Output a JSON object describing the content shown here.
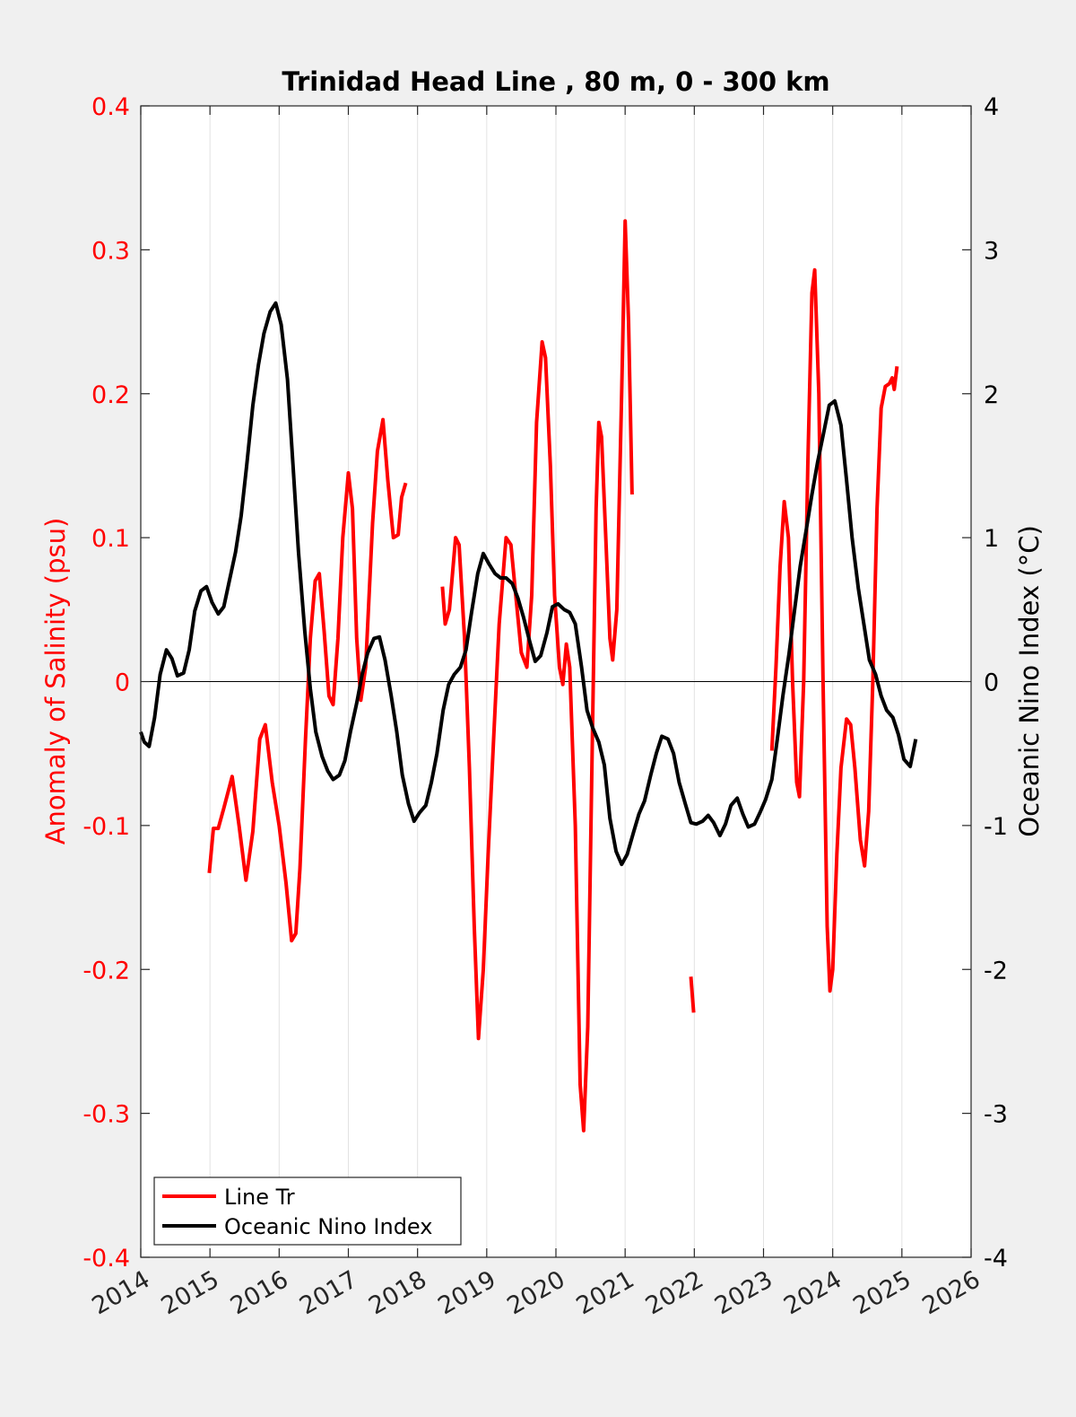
{
  "chart_data": {
    "type": "line",
    "title": "Trinidad Head Line , 80 m, 0 - 300 km",
    "xlabel": "",
    "ylabel_left": "Anomaly of Salinity (psu)",
    "ylabel_right": "Oceanic Nino Index (°C)",
    "xlim": [
      2014,
      2026
    ],
    "ylim_left": [
      -0.4,
      0.4
    ],
    "ylim_right": [
      -4,
      4
    ],
    "x_ticks": [
      "2014",
      "2015",
      "2016",
      "2017",
      "2018",
      "2019",
      "2020",
      "2021",
      "2022",
      "2023",
      "2024",
      "2025",
      "2026"
    ],
    "y_left_ticks": [
      "-0.4",
      "-0.3",
      "-0.2",
      "-0.1",
      "0",
      "0.1",
      "0.2",
      "0.3",
      "0.4"
    ],
    "y_right_ticks": [
      "-4",
      "-3",
      "-2",
      "-1",
      "0",
      "1",
      "2",
      "3",
      "4"
    ],
    "grid": "vertical",
    "legend_position": "bottom-left",
    "colors": {
      "line_tr": "#ff0000",
      "oni": "#000000",
      "left_axis": "#ff0000",
      "right_axis": "#000000"
    },
    "series": [
      {
        "name": "Line Tr",
        "axis": "left",
        "segments": [
          [
            [
              2014.99,
              -0.133
            ],
            [
              2015.05,
              -0.102
            ],
            [
              2015.12,
              -0.102
            ],
            [
              2015.2,
              -0.088
            ],
            [
              2015.32,
              -0.066
            ],
            [
              2015.42,
              -0.1
            ],
            [
              2015.52,
              -0.138
            ],
            [
              2015.62,
              -0.104
            ],
            [
              2015.72,
              -0.04
            ],
            [
              2015.8,
              -0.03
            ],
            [
              2015.9,
              -0.07
            ],
            [
              2016.0,
              -0.1
            ],
            [
              2016.1,
              -0.14
            ],
            [
              2016.18,
              -0.18
            ],
            [
              2016.24,
              -0.175
            ],
            [
              2016.3,
              -0.13
            ],
            [
              2016.38,
              -0.04
            ],
            [
              2016.45,
              0.03
            ],
            [
              2016.52,
              0.07
            ],
            [
              2016.58,
              0.075
            ],
            [
              2016.65,
              0.035
            ],
            [
              2016.72,
              -0.01
            ],
            [
              2016.78,
              -0.016
            ],
            [
              2016.85,
              0.03
            ],
            [
              2016.92,
              0.1
            ],
            [
              2017.0,
              0.145
            ],
            [
              2017.06,
              0.12
            ],
            [
              2017.12,
              0.03
            ],
            [
              2017.18,
              -0.013
            ],
            [
              2017.25,
              0.01
            ],
            [
              2017.35,
              0.11
            ],
            [
              2017.42,
              0.16
            ],
            [
              2017.5,
              0.182
            ],
            [
              2017.57,
              0.14
            ],
            [
              2017.65,
              0.1
            ],
            [
              2017.72,
              0.102
            ],
            [
              2017.77,
              0.128
            ],
            [
              2017.83,
              0.138
            ]
          ],
          [
            [
              2018.36,
              0.066
            ],
            [
              2018.4,
              0.04
            ],
            [
              2018.46,
              0.05
            ],
            [
              2018.55,
              0.1
            ],
            [
              2018.6,
              0.095
            ],
            [
              2018.68,
              0.03
            ],
            [
              2018.75,
              -0.06
            ],
            [
              2018.82,
              -0.17
            ],
            [
              2018.88,
              -0.248
            ],
            [
              2018.95,
              -0.2
            ],
            [
              2019.02,
              -0.12
            ],
            [
              2019.1,
              -0.04
            ],
            [
              2019.18,
              0.04
            ],
            [
              2019.28,
              0.1
            ],
            [
              2019.35,
              0.095
            ],
            [
              2019.42,
              0.06
            ],
            [
              2019.5,
              0.02
            ],
            [
              2019.58,
              0.01
            ],
            [
              2019.65,
              0.06
            ],
            [
              2019.72,
              0.18
            ],
            [
              2019.8,
              0.236
            ],
            [
              2019.85,
              0.225
            ],
            [
              2019.92,
              0.15
            ],
            [
              2019.98,
              0.06
            ],
            [
              2020.05,
              0.01
            ],
            [
              2020.1,
              -0.002
            ],
            [
              2020.15,
              0.026
            ],
            [
              2020.2,
              0.01
            ],
            [
              2020.28,
              -0.1
            ],
            [
              2020.35,
              -0.28
            ],
            [
              2020.4,
              -0.312
            ],
            [
              2020.46,
              -0.24
            ],
            [
              2020.52,
              -0.06
            ],
            [
              2020.58,
              0.12
            ],
            [
              2020.62,
              0.18
            ],
            [
              2020.66,
              0.17
            ],
            [
              2020.72,
              0.1
            ],
            [
              2020.78,
              0.03
            ],
            [
              2020.82,
              0.015
            ],
            [
              2020.88,
              0.05
            ],
            [
              2020.95,
              0.2
            ],
            [
              2021.0,
              0.32
            ],
            [
              2021.05,
              0.25
            ],
            [
              2021.1,
              0.13
            ]
          ],
          [
            [
              2021.95,
              -0.205
            ],
            [
              2021.99,
              -0.23
            ]
          ],
          [
            [
              2023.12,
              -0.048
            ],
            [
              2023.18,
              0.01
            ],
            [
              2023.24,
              0.08
            ],
            [
              2023.3,
              0.125
            ],
            [
              2023.36,
              0.1
            ],
            [
              2023.42,
              0.0
            ],
            [
              2023.48,
              -0.07
            ],
            [
              2023.52,
              -0.08
            ],
            [
              2023.58,
              0.0
            ],
            [
              2023.64,
              0.15
            ],
            [
              2023.7,
              0.27
            ],
            [
              2023.74,
              0.286
            ],
            [
              2023.8,
              0.2
            ],
            [
              2023.86,
              0.0
            ],
            [
              2023.92,
              -0.17
            ],
            [
              2023.96,
              -0.215
            ],
            [
              2024.0,
              -0.2
            ],
            [
              2024.06,
              -0.12
            ],
            [
              2024.12,
              -0.06
            ],
            [
              2024.2,
              -0.026
            ],
            [
              2024.26,
              -0.03
            ],
            [
              2024.32,
              -0.06
            ],
            [
              2024.4,
              -0.11
            ],
            [
              2024.46,
              -0.128
            ],
            [
              2024.52,
              -0.09
            ],
            [
              2024.58,
              0.0
            ],
            [
              2024.64,
              0.12
            ],
            [
              2024.7,
              0.19
            ],
            [
              2024.76,
              0.205
            ],
            [
              2024.82,
              0.207
            ],
            [
              2024.86,
              0.211
            ],
            [
              2024.89,
              0.203
            ],
            [
              2024.93,
              0.219
            ]
          ]
        ]
      },
      {
        "name": "Oceanic Nino Index",
        "axis": "right",
        "segments": [
          [
            [
              2014.0,
              -0.35
            ],
            [
              2014.05,
              -0.42
            ],
            [
              2014.12,
              -0.45
            ],
            [
              2014.2,
              -0.25
            ],
            [
              2014.28,
              0.05
            ],
            [
              2014.37,
              0.22
            ],
            [
              2014.45,
              0.16
            ],
            [
              2014.53,
              0.04
            ],
            [
              2014.62,
              0.06
            ],
            [
              2014.7,
              0.22
            ],
            [
              2014.78,
              0.49
            ],
            [
              2014.87,
              0.63
            ],
            [
              2014.95,
              0.66
            ],
            [
              2015.03,
              0.55
            ],
            [
              2015.12,
              0.47
            ],
            [
              2015.2,
              0.52
            ],
            [
              2015.28,
              0.7
            ],
            [
              2015.37,
              0.9
            ],
            [
              2015.45,
              1.15
            ],
            [
              2015.53,
              1.5
            ],
            [
              2015.62,
              1.92
            ],
            [
              2015.7,
              2.2
            ],
            [
              2015.78,
              2.42
            ],
            [
              2015.87,
              2.57
            ],
            [
              2015.95,
              2.63
            ],
            [
              2016.03,
              2.48
            ],
            [
              2016.12,
              2.1
            ],
            [
              2016.2,
              1.5
            ],
            [
              2016.28,
              0.9
            ],
            [
              2016.37,
              0.35
            ],
            [
              2016.45,
              -0.05
            ],
            [
              2016.53,
              -0.35
            ],
            [
              2016.62,
              -0.52
            ],
            [
              2016.7,
              -0.62
            ],
            [
              2016.78,
              -0.68
            ],
            [
              2016.87,
              -0.65
            ],
            [
              2016.95,
              -0.55
            ],
            [
              2017.03,
              -0.35
            ],
            [
              2017.12,
              -0.15
            ],
            [
              2017.2,
              0.05
            ],
            [
              2017.28,
              0.2
            ],
            [
              2017.37,
              0.3
            ],
            [
              2017.45,
              0.31
            ],
            [
              2017.53,
              0.15
            ],
            [
              2017.62,
              -0.1
            ],
            [
              2017.7,
              -0.35
            ],
            [
              2017.78,
              -0.65
            ],
            [
              2017.87,
              -0.85
            ],
            [
              2017.95,
              -0.97
            ],
            [
              2018.03,
              -0.91
            ],
            [
              2018.12,
              -0.86
            ],
            [
              2018.2,
              -0.7
            ],
            [
              2018.28,
              -0.5
            ],
            [
              2018.37,
              -0.2
            ],
            [
              2018.45,
              -0.02
            ],
            [
              2018.53,
              0.05
            ],
            [
              2018.62,
              0.1
            ],
            [
              2018.7,
              0.22
            ],
            [
              2018.78,
              0.48
            ],
            [
              2018.87,
              0.75
            ],
            [
              2018.95,
              0.89
            ],
            [
              2019.03,
              0.82
            ],
            [
              2019.12,
              0.75
            ],
            [
              2019.2,
              0.72
            ],
            [
              2019.28,
              0.72
            ],
            [
              2019.37,
              0.68
            ],
            [
              2019.45,
              0.58
            ],
            [
              2019.53,
              0.45
            ],
            [
              2019.62,
              0.28
            ],
            [
              2019.7,
              0.14
            ],
            [
              2019.78,
              0.18
            ],
            [
              2019.87,
              0.34
            ],
            [
              2019.95,
              0.52
            ],
            [
              2020.03,
              0.54
            ],
            [
              2020.12,
              0.5
            ],
            [
              2020.2,
              0.48
            ],
            [
              2020.28,
              0.4
            ],
            [
              2020.37,
              0.1
            ],
            [
              2020.45,
              -0.2
            ],
            [
              2020.53,
              -0.32
            ],
            [
              2020.62,
              -0.42
            ],
            [
              2020.7,
              -0.58
            ],
            [
              2020.78,
              -0.95
            ],
            [
              2020.87,
              -1.18
            ],
            [
              2020.95,
              -1.27
            ],
            [
              2021.03,
              -1.2
            ],
            [
              2021.12,
              -1.05
            ],
            [
              2021.2,
              -0.92
            ],
            [
              2021.28,
              -0.83
            ],
            [
              2021.37,
              -0.65
            ],
            [
              2021.45,
              -0.5
            ],
            [
              2021.53,
              -0.38
            ],
            [
              2021.62,
              -0.4
            ],
            [
              2021.7,
              -0.5
            ],
            [
              2021.78,
              -0.7
            ],
            [
              2021.87,
              -0.85
            ],
            [
              2021.95,
              -0.98
            ],
            [
              2022.03,
              -0.99
            ],
            [
              2022.12,
              -0.97
            ],
            [
              2022.2,
              -0.93
            ],
            [
              2022.28,
              -0.98
            ],
            [
              2022.37,
              -1.07
            ],
            [
              2022.45,
              -0.99
            ],
            [
              2022.53,
              -0.86
            ],
            [
              2022.62,
              -0.81
            ],
            [
              2022.7,
              -0.92
            ],
            [
              2022.78,
              -1.01
            ],
            [
              2022.87,
              -0.99
            ],
            [
              2022.95,
              -0.91
            ],
            [
              2023.03,
              -0.82
            ],
            [
              2023.12,
              -0.68
            ],
            [
              2023.2,
              -0.4
            ],
            [
              2023.28,
              -0.1
            ],
            [
              2023.37,
              0.2
            ],
            [
              2023.45,
              0.5
            ],
            [
              2023.53,
              0.8
            ],
            [
              2023.62,
              1.06
            ],
            [
              2023.7,
              1.3
            ],
            [
              2023.78,
              1.52
            ],
            [
              2023.87,
              1.73
            ],
            [
              2023.95,
              1.92
            ],
            [
              2024.03,
              1.95
            ],
            [
              2024.12,
              1.78
            ],
            [
              2024.2,
              1.4
            ],
            [
              2024.28,
              1.0
            ],
            [
              2024.37,
              0.65
            ],
            [
              2024.45,
              0.4
            ],
            [
              2024.53,
              0.15
            ],
            [
              2024.62,
              0.05
            ],
            [
              2024.7,
              -0.1
            ],
            [
              2024.78,
              -0.2
            ],
            [
              2024.87,
              -0.25
            ],
            [
              2024.95,
              -0.37
            ],
            [
              2025.03,
              -0.54
            ],
            [
              2025.12,
              -0.59
            ],
            [
              2025.2,
              -0.4
            ]
          ]
        ]
      }
    ]
  }
}
